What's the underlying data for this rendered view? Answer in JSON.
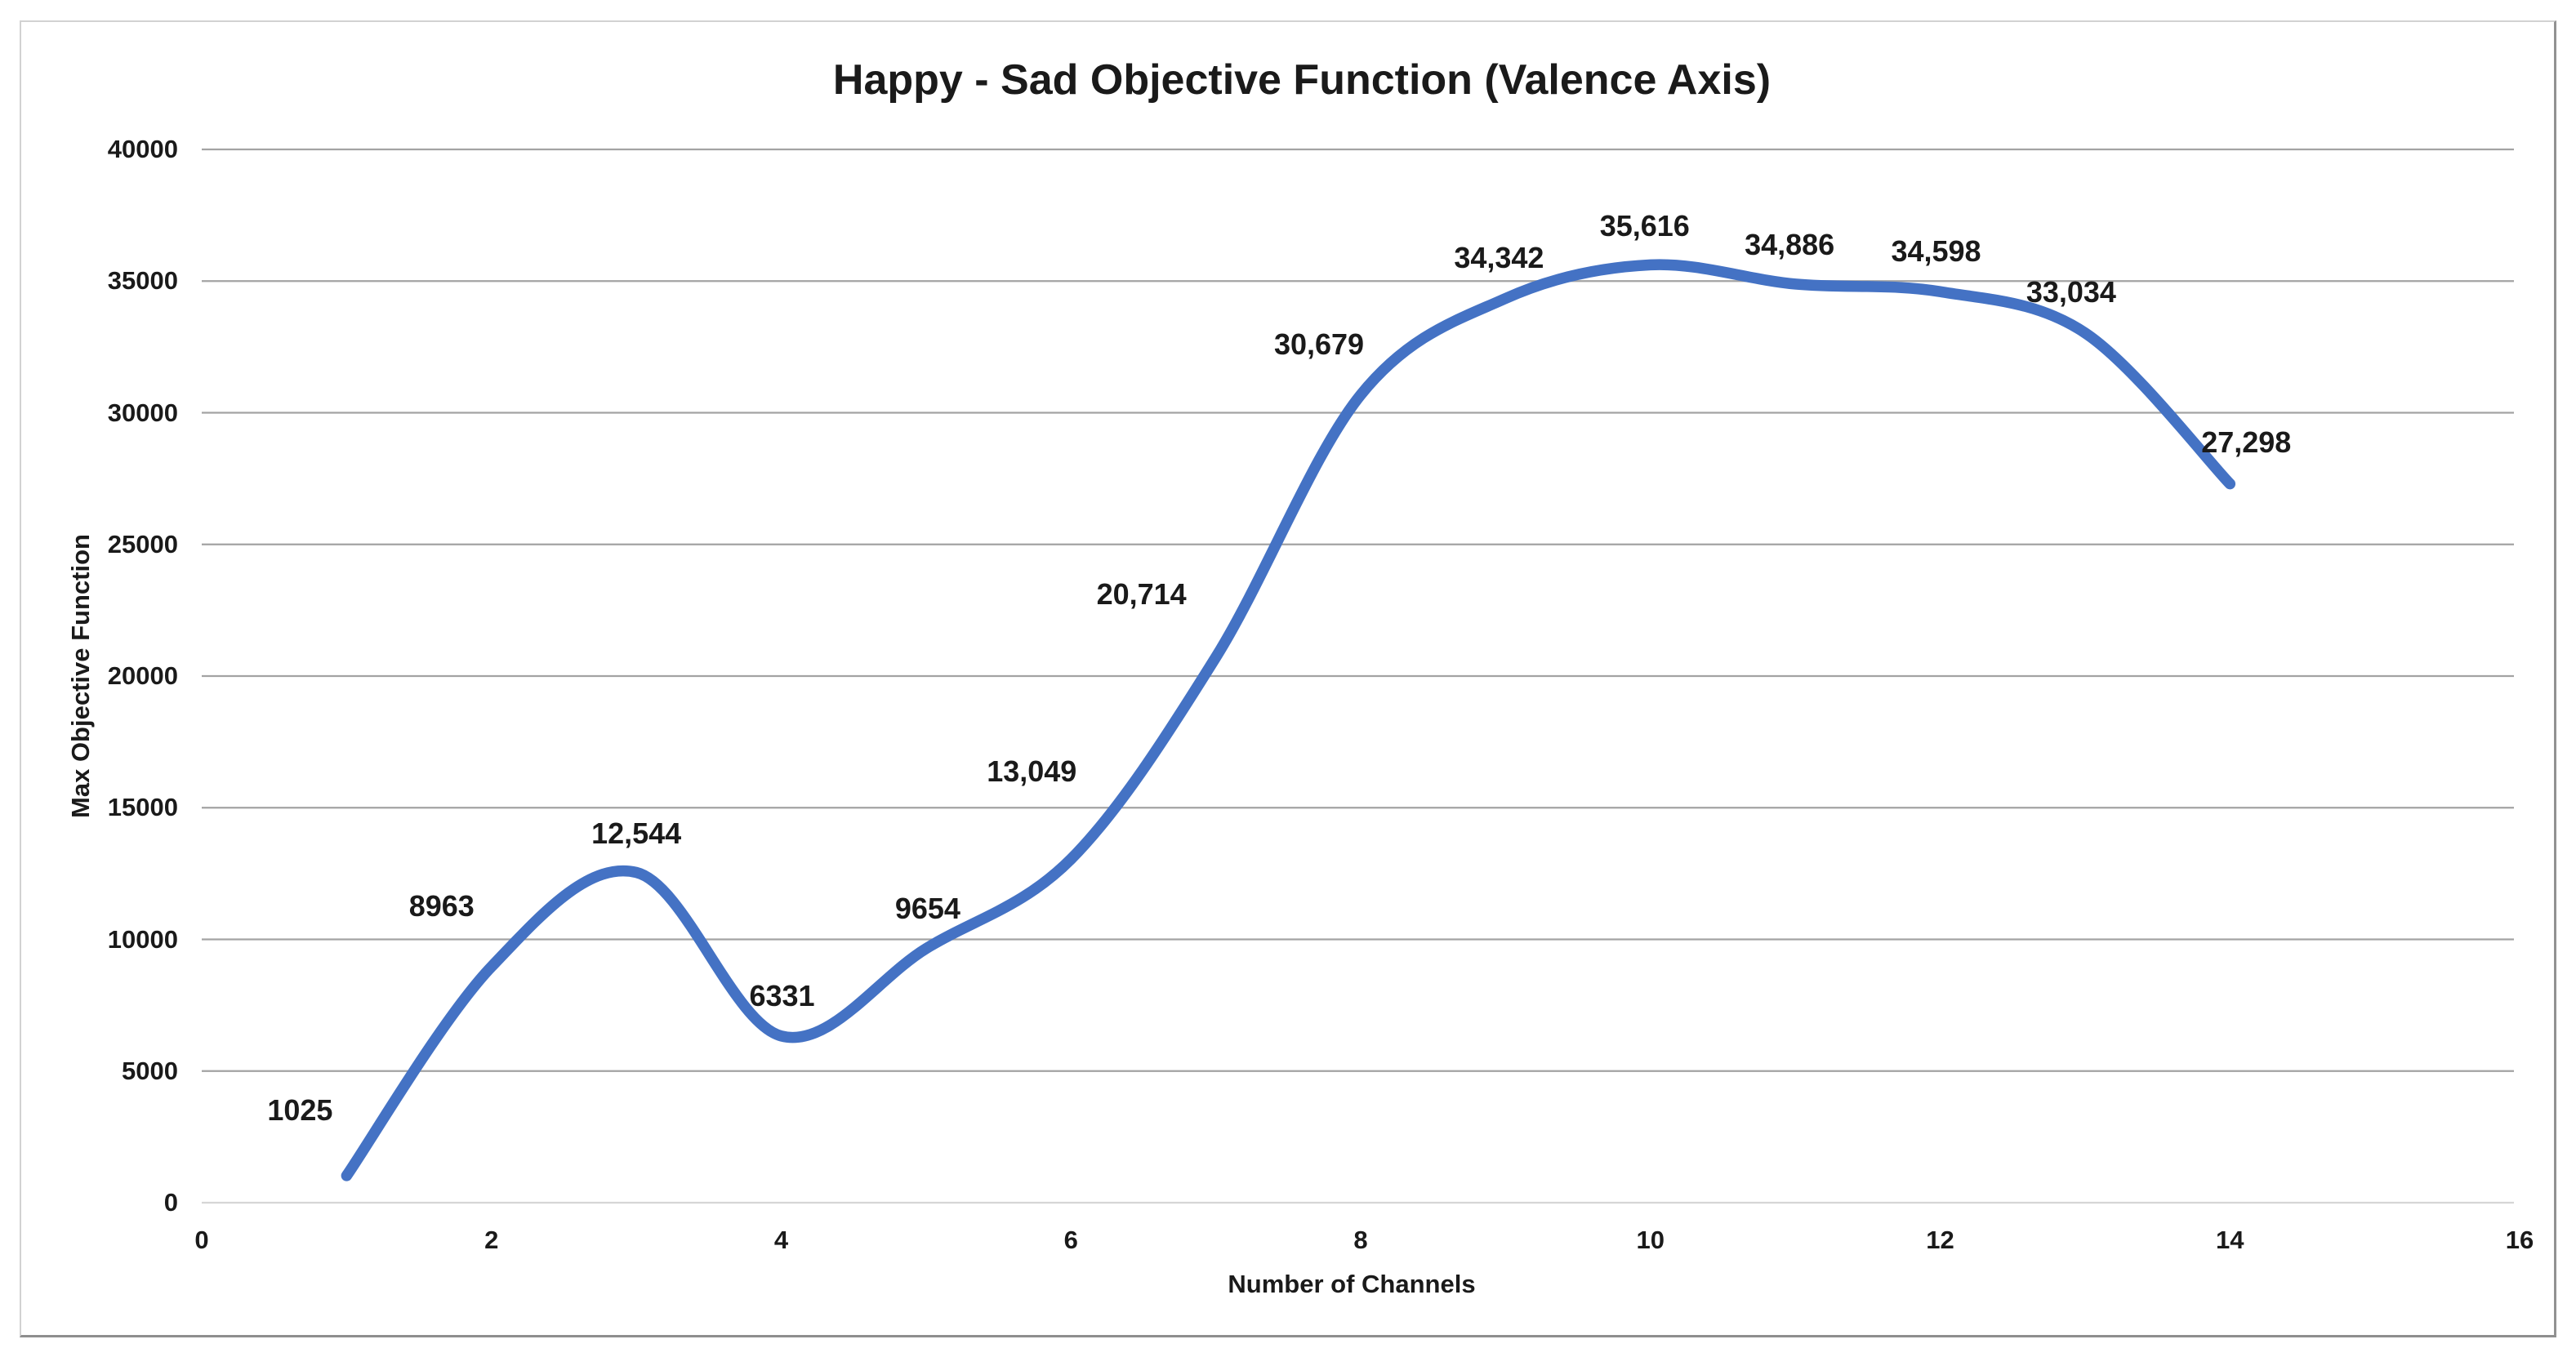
{
  "chart_data": {
    "type": "line",
    "title": "Happy - Sad Objective Function (Valence Axis)",
    "xlabel": "Number of Channels",
    "ylabel": "Max Objective Function",
    "x": [
      1,
      2,
      3,
      4,
      5,
      6,
      7,
      8,
      9,
      10,
      11,
      12,
      13,
      14
    ],
    "values": [
      1025,
      8963,
      12544,
      6331,
      9654,
      13049,
      20714,
      30679,
      34342,
      35616,
      34886,
      34598,
      33034,
      27298
    ],
    "point_labels": [
      "1025",
      "8963",
      "12,544",
      "6331",
      "9654",
      "13,049",
      "20,714",
      "30,679",
      "34,342",
      "35,616",
      "34,886",
      "34,598",
      "33,034",
      "27,298"
    ],
    "xlim": [
      0,
      16
    ],
    "ylim": [
      0,
      40000
    ],
    "x_ticks": [
      "0",
      "2",
      "4",
      "6",
      "8",
      "10",
      "12",
      "14",
      "16"
    ],
    "y_ticks": [
      "0",
      "5000",
      "10000",
      "15000",
      "20000",
      "25000",
      "30000",
      "35000",
      "40000"
    ],
    "grid": "horizontal-major",
    "legend": "none",
    "smooth_line": true,
    "line_color": "#4472C4",
    "gridline_color": "#a3a3a3",
    "zero_axis_color": "#d6d6d6",
    "text_color": "#1a1a1a"
  }
}
